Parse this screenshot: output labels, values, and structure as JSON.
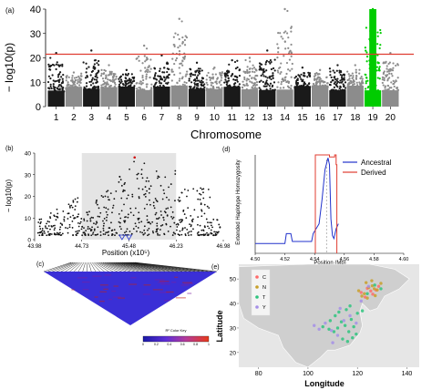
{
  "colors": {
    "chrom_dark": "#1a1a1a",
    "chrom_light": "#8c8c8c",
    "highlight": "#00cc00",
    "threshold": "#e03c31",
    "ancestral": "#2233cc",
    "derived": "#e03c31",
    "region_shade": "#e4e4e4",
    "map_bg": "#e6e6e6",
    "map_land": "#cfcfcf"
  },
  "panels": {
    "a": {
      "tag": "(a)",
      "xlabel": "Chromosome",
      "ylabel": "− log10(p)"
    },
    "b": {
      "tag": "(b)",
      "xlabel": "Position (x10⁵)",
      "ylabel": "− log10(p)"
    },
    "c": {
      "tag": "(c)",
      "legend_title": "R² Color Key",
      "legend_ticks": [
        "0",
        "0.2",
        "0.4",
        "0.6",
        "0.8",
        "1"
      ]
    },
    "d": {
      "tag": "(d)",
      "xlabel": "Position (Mb)",
      "ylabel": "Extended Haplotype Homozygosity"
    },
    "e": {
      "tag": "(e)",
      "xlabel": "Longitude",
      "ylabel": "Latitude"
    }
  },
  "chart_data": [
    {
      "id": "a",
      "type": "scatter",
      "title": "",
      "xlabel": "Chromosome",
      "ylabel": "− log10(p)",
      "categories": [
        "1",
        "2",
        "3",
        "4",
        "5",
        "6",
        "7",
        "8",
        "9",
        "10",
        "11",
        "12",
        "13",
        "14",
        "15",
        "16",
        "17",
        "18",
        "19",
        "20"
      ],
      "ylim": [
        0,
        40
      ],
      "yticks": [
        0,
        10,
        20,
        30,
        40
      ],
      "threshold": 21.5,
      "highlight_category": "19",
      "typical_max": [
        22,
        14,
        23,
        17,
        15,
        25,
        21,
        36,
        18,
        16,
        19,
        20,
        23,
        40,
        16,
        15,
        17,
        17,
        40,
        22
      ],
      "grid": false
    },
    {
      "id": "b",
      "type": "scatter",
      "xlabel": "Position (x10⁵)",
      "ylabel": "− log10(p)",
      "xlim": [
        43.98,
        46.98
      ],
      "xticks": [
        "43.98",
        "44.73",
        "45.48",
        "46.23",
        "46.98"
      ],
      "ylim": [
        0,
        40
      ],
      "yticks": [
        0,
        10,
        20,
        30,
        40
      ],
      "shaded_region": [
        44.73,
        46.23
      ],
      "markers": [
        45.37,
        45.48
      ]
    },
    {
      "id": "c",
      "type": "heatmap",
      "legend_title": "R² Color Key",
      "scale": [
        0,
        1
      ]
    },
    {
      "id": "d",
      "type": "line",
      "xlabel": "Position (Mb)",
      "ylabel": "Extended Haplotype Homozygosity",
      "xlim": [
        4.5,
        4.6
      ],
      "xticks": [
        "4.50",
        "4.52",
        "4.54",
        "4.56",
        "4.58",
        "4.60"
      ],
      "ylim": [
        0,
        1
      ],
      "series": [
        {
          "name": "Ancestral",
          "color": "#2233cc",
          "x": [
            4.5,
            4.52,
            4.521,
            4.524,
            4.525,
            4.538,
            4.539,
            4.543,
            4.545,
            4.547,
            4.549,
            4.55,
            4.551,
            4.552,
            4.553,
            4.5545,
            4.556
          ],
          "y": [
            0.1,
            0.1,
            0.2,
            0.2,
            0.12,
            0.12,
            0.2,
            0.3,
            0.55,
            0.85,
            0.97,
            0.9,
            0.35,
            0.18,
            0.15,
            0.25,
            0.3
          ]
        },
        {
          "name": "Derived",
          "color": "#e03c31",
          "x": [
            4.5405,
            4.5405,
            4.55,
            4.55,
            4.5535,
            4.5535,
            4.5545,
            4.5545,
            4.555,
            4.555
          ],
          "y": [
            0.0,
            1.0,
            1.0,
            0.98,
            0.98,
            1.0,
            1.0,
            0.9,
            0.9,
            0.0
          ]
        }
      ],
      "core_marker": 4.548
    },
    {
      "id": "e",
      "type": "scatter",
      "xlabel": "Longitude",
      "ylabel": "Latitude",
      "xlim": [
        72,
        145
      ],
      "xticks": [
        "80",
        "100",
        "120",
        "140"
      ],
      "ylim": [
        14,
        56
      ],
      "yticks": [
        "20",
        "30",
        "40",
        "50"
      ],
      "legend_position": "top-left",
      "groups": [
        {
          "name": "C",
          "color": "#ff6b6b",
          "lon": [
            121.5,
            124.0,
            126.2,
            127.5,
            128.6,
            123.1,
            125.4
          ],
          "lat": [
            44.5,
            46.2,
            43.8,
            45.5,
            47.0,
            42.6,
            45.1
          ]
        },
        {
          "name": "N",
          "color": "#c8a02a",
          "lon": [
            120.5,
            122.8,
            124.6,
            126.0,
            128.0,
            129.5,
            123.5,
            125.8,
            127.2,
            121.8,
            124.0,
            126.8
          ],
          "lat": [
            45.2,
            44.0,
            46.5,
            47.2,
            45.5,
            48.2,
            48.5,
            49.3,
            43.2,
            43.0,
            42.2,
            46.0
          ]
        },
        {
          "name": "T",
          "color": "#2ec47e",
          "lon": [
            106.0,
            108.5,
            110.5,
            112.0,
            113.5,
            115.0,
            116.5,
            117.5,
            118.5,
            119.5,
            111.0,
            114.0,
            116.0,
            118.0,
            120.0,
            122.0,
            124.0,
            127.0,
            129.5,
            109.0,
            112.5,
            115.5,
            117.0
          ],
          "lat": [
            30.5,
            29.5,
            28.5,
            30.0,
            32.5,
            31.0,
            28.5,
            33.5,
            30.5,
            27.5,
            35.0,
            25.5,
            24.5,
            26.0,
            36.0,
            37.0,
            44.0,
            47.5,
            46.0,
            33.0,
            36.5,
            37.5,
            39.0
          ]
        },
        {
          "name": "Y",
          "color": "#a58fe8",
          "lon": [
            102.5,
            104.5,
            107.0,
            109.5,
            112.0,
            114.5,
            117.0,
            119.5,
            121.5,
            124.5,
            110.0,
            113.0
          ],
          "lat": [
            31.0,
            29.5,
            32.0,
            29.0,
            27.0,
            33.0,
            35.0,
            32.0,
            41.0,
            47.0,
            24.0,
            38.0
          ]
        }
      ]
    }
  ]
}
